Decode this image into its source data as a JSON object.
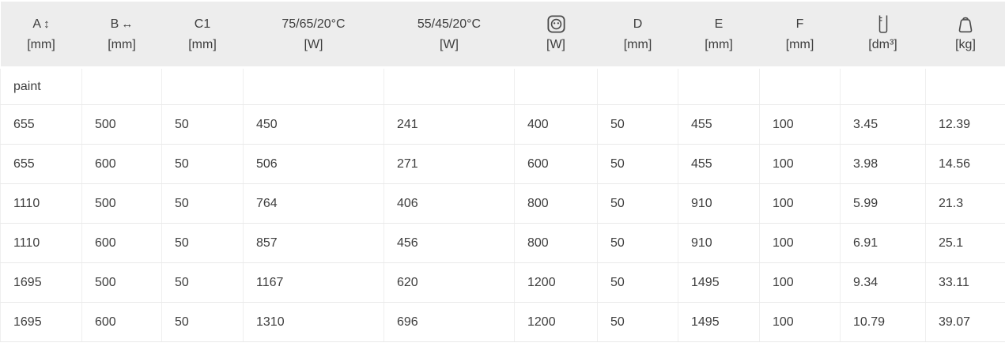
{
  "page": {
    "background": "#ffffff",
    "header_bg": "#ededed",
    "text_color": "#3d3d3d",
    "border_color": "#e9e9e9",
    "icon_color": "#4a4a4a"
  },
  "table": {
    "columns": [
      {
        "id": "height-a",
        "label": "A",
        "arrow": "↕",
        "icon": null,
        "unit": "[mm]"
      },
      {
        "id": "width-b",
        "label": "B",
        "arrow": "↔",
        "icon": null,
        "unit": "[mm]"
      },
      {
        "id": "c1",
        "label": "C1",
        "arrow": "",
        "icon": null,
        "unit": "[mm]"
      },
      {
        "id": "output-75-65-20",
        "label": "75/65/20°C",
        "arrow": "",
        "icon": null,
        "unit": "[W]"
      },
      {
        "id": "output-55-45-20",
        "label": "55/45/20°C",
        "arrow": "",
        "icon": null,
        "unit": "[W]"
      },
      {
        "id": "electric-power",
        "label": "",
        "arrow": "",
        "icon": "socket-icon",
        "unit": "[W]"
      },
      {
        "id": "d",
        "label": "D",
        "arrow": "",
        "icon": null,
        "unit": "[mm]"
      },
      {
        "id": "e",
        "label": "E",
        "arrow": "",
        "icon": null,
        "unit": "[mm]"
      },
      {
        "id": "f",
        "label": "F",
        "arrow": "",
        "icon": null,
        "unit": "[mm]"
      },
      {
        "id": "water-volume",
        "label": "",
        "arrow": "",
        "icon": "vessel-icon",
        "unit": "[dm³]"
      },
      {
        "id": "weight",
        "label": "",
        "arrow": "",
        "icon": "weight-icon",
        "unit": "[kg]"
      }
    ],
    "group_row": {
      "label": "paint"
    },
    "rows": [
      [
        "655",
        "500",
        "50",
        "450",
        "241",
        "400",
        "50",
        "455",
        "100",
        "3.45",
        "12.39"
      ],
      [
        "655",
        "600",
        "50",
        "506",
        "271",
        "600",
        "50",
        "455",
        "100",
        "3.98",
        "14.56"
      ],
      [
        "1110",
        "500",
        "50",
        "764",
        "406",
        "800",
        "50",
        "910",
        "100",
        "5.99",
        "21.3"
      ],
      [
        "1110",
        "600",
        "50",
        "857",
        "456",
        "800",
        "50",
        "910",
        "100",
        "6.91",
        "25.1"
      ],
      [
        "1695",
        "500",
        "50",
        "1167",
        "620",
        "1200",
        "50",
        "1495",
        "100",
        "9.34",
        "33.11"
      ],
      [
        "1695",
        "600",
        "50",
        "1310",
        "696",
        "1200",
        "50",
        "1495",
        "100",
        "10.79",
        "39.07"
      ]
    ]
  }
}
